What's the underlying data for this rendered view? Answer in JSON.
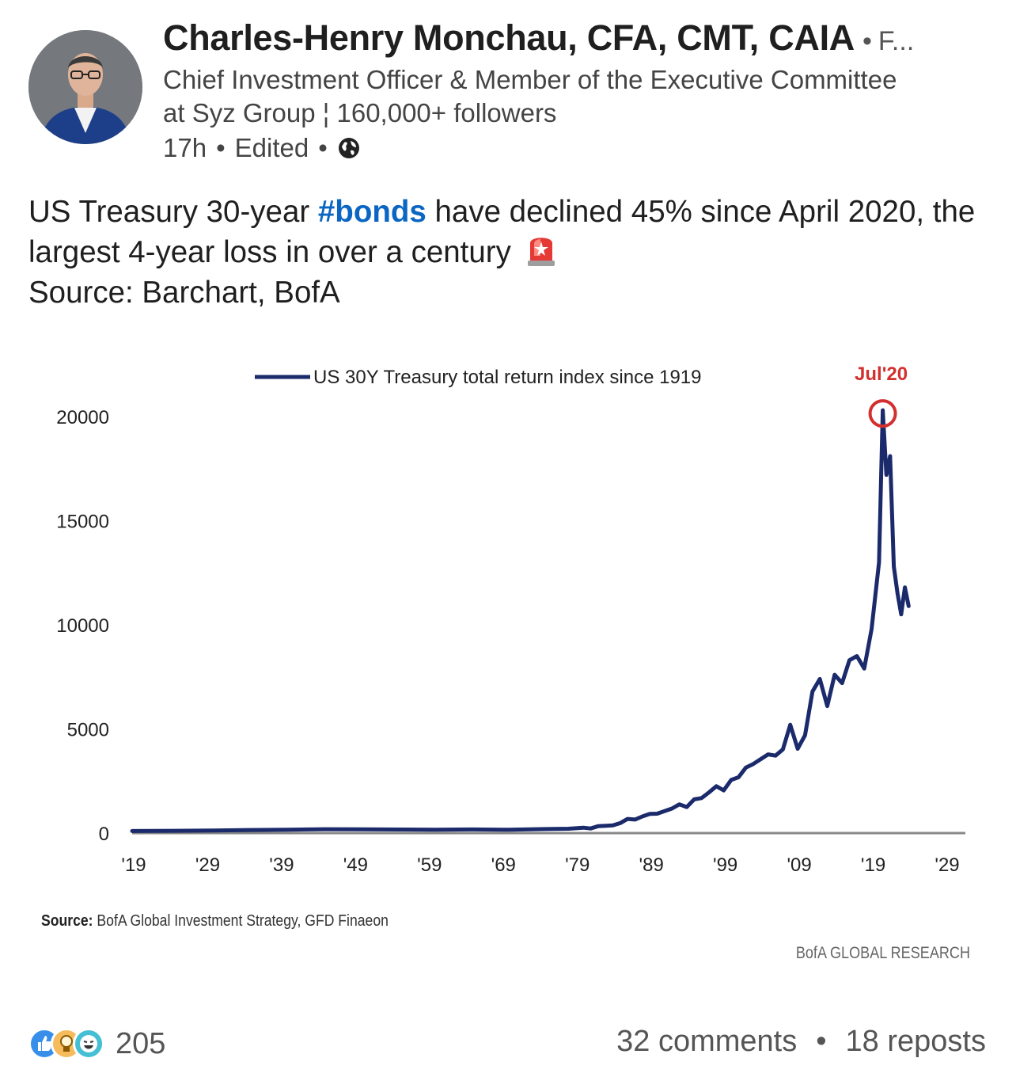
{
  "author": {
    "name": "Charles-Henry Monchau, CFA, CMT, CAIA",
    "follow_dot": "•",
    "follow_label": "F...",
    "headline": "Chief Investment Officer & Member of the Executive Committee at Syz Group ¦ 160,000+ followers",
    "time": "17h",
    "edited": "Edited",
    "visibility_icon": "globe-icon"
  },
  "post": {
    "text_before_tag": "US Treasury 30-year ",
    "hashtag": "#bonds",
    "text_after_tag": " have declined 45% since April 2020, the largest 4-year loss in over a century",
    "emoji_icon": "siren-icon",
    "source_text": "Source: Barchart, BofA"
  },
  "chart_data": {
    "type": "line",
    "legend": "US 30Y Treasury total return index since 1919",
    "legend_placement": "top",
    "annotation": {
      "label": "Jul'20",
      "x": 2020.5,
      "y": 20300,
      "color": "#d32f2f"
    },
    "x_tick_labels": [
      "'19",
      "'29",
      "'39",
      "'49",
      "'59",
      "'69",
      "'79",
      "'89",
      "'99",
      "'09",
      "'19",
      "'29"
    ],
    "y_tick_labels": [
      "20000",
      "15000",
      "10000",
      "5000",
      "0"
    ],
    "y_ticks": [
      20000,
      15000,
      10000,
      5000,
      0
    ],
    "xlim": [
      1919,
      2029
    ],
    "ylim": [
      0,
      20000
    ],
    "line_color": "#1b2a6b",
    "series": [
      {
        "values": [
          [
            1919,
            100
          ],
          [
            1925,
            110
          ],
          [
            1930,
            120
          ],
          [
            1935,
            150
          ],
          [
            1940,
            165
          ],
          [
            1945,
            185
          ],
          [
            1950,
            180
          ],
          [
            1955,
            170
          ],
          [
            1960,
            165
          ],
          [
            1965,
            175
          ],
          [
            1970,
            160
          ],
          [
            1975,
            195
          ],
          [
            1978,
            210
          ],
          [
            1980,
            260
          ],
          [
            1981,
            220
          ],
          [
            1982,
            330
          ],
          [
            1984,
            370
          ],
          [
            1985,
            480
          ],
          [
            1986,
            680
          ],
          [
            1987,
            650
          ],
          [
            1988,
            800
          ],
          [
            1989,
            920
          ],
          [
            1990,
            930
          ],
          [
            1992,
            1180
          ],
          [
            1993,
            1380
          ],
          [
            1994,
            1250
          ],
          [
            1995,
            1620
          ],
          [
            1996,
            1680
          ],
          [
            1997,
            1950
          ],
          [
            1998,
            2250
          ],
          [
            1999,
            2050
          ],
          [
            2000,
            2550
          ],
          [
            2001,
            2680
          ],
          [
            2002,
            3150
          ],
          [
            2003,
            3320
          ],
          [
            2004,
            3550
          ],
          [
            2005,
            3780
          ],
          [
            2006,
            3720
          ],
          [
            2007,
            4020
          ],
          [
            2008,
            5200
          ],
          [
            2009,
            4050
          ],
          [
            2010,
            4700
          ],
          [
            2011,
            6800
          ],
          [
            2012,
            7400
          ],
          [
            2013,
            6100
          ],
          [
            2014,
            7600
          ],
          [
            2015,
            7200
          ],
          [
            2016,
            8300
          ],
          [
            2017,
            8500
          ],
          [
            2018,
            7900
          ],
          [
            2019,
            9800
          ],
          [
            2020,
            13000
          ],
          [
            2020.5,
            20300
          ],
          [
            2021,
            17200
          ],
          [
            2021.5,
            18100
          ],
          [
            2022,
            12800
          ],
          [
            2022.5,
            11500
          ],
          [
            2023,
            10500
          ],
          [
            2023.5,
            11800
          ],
          [
            2024,
            10900
          ]
        ]
      }
    ],
    "source": {
      "label": "Source:",
      "text": "BofA Global Investment Strategy, GFD Finaeon"
    },
    "brand": "BofA GLOBAL RESEARCH"
  },
  "social": {
    "reaction_icons": [
      "like-icon",
      "insightful-icon",
      "funny-icon"
    ],
    "reaction_count": "205",
    "comments": "32 comments",
    "dot": "•",
    "reposts": "18 reposts"
  }
}
